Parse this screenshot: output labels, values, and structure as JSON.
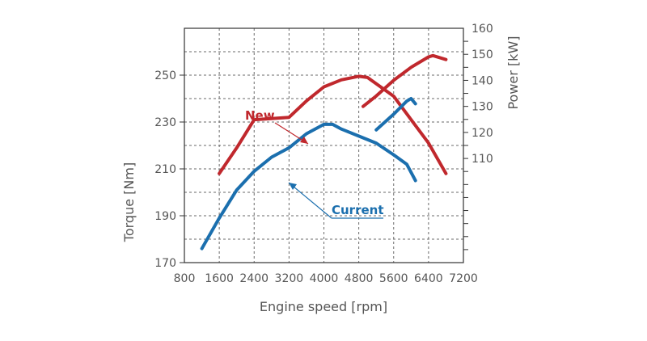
{
  "chart_data": {
    "type": "line",
    "xlabel": "Engine speed [rpm]",
    "ylabel": "Torque [Nm]",
    "y2label": "Power [kW]",
    "xlim": [
      800,
      7200
    ],
    "ylim": [
      170,
      270
    ],
    "y2lim": [
      70,
      160
    ],
    "grid": true,
    "x_ticks": [
      800,
      1600,
      2400,
      3200,
      4000,
      4800,
      5600,
      6400,
      7200
    ],
    "y_ticks": [
      170,
      190,
      210,
      230,
      250
    ],
    "y2_ticks": [
      110,
      120,
      130,
      140,
      150,
      160
    ],
    "annotations": [
      {
        "text": "New",
        "color": "#c0282d"
      },
      {
        "text": "Current",
        "color": "#1b6fae"
      }
    ],
    "series": [
      {
        "axis": "left",
        "color": "#c0282d",
        "x": [
          1600,
          2000,
          2400,
          2800,
          3200,
          3600,
          4000,
          4400,
          4800,
          5000,
          5600,
          6000,
          6400,
          6800
        ],
        "y": [
          208,
          219,
          231,
          231.5,
          232,
          239,
          245,
          248,
          249.5,
          249,
          241,
          231,
          221,
          208
        ]
      },
      {
        "axis": "left",
        "color": "#1b6fae",
        "x": [
          1200,
          1600,
          2000,
          2400,
          2800,
          3200,
          3600,
          4000,
          4200,
          4400,
          4800,
          5200,
          5600,
          5900,
          6100
        ],
        "y": [
          176,
          189,
          201,
          209,
          215,
          219,
          225,
          229,
          229,
          227,
          224,
          221,
          216,
          212,
          205
        ]
      },
      {
        "axis": "right",
        "color": "#c0282d",
        "x": [
          4900,
          5200,
          5600,
          6000,
          6400,
          6500,
          6800
        ],
        "y": [
          130,
          134,
          140,
          145,
          149,
          149.5,
          148
        ]
      },
      {
        "axis": "right",
        "color": "#1b6fae",
        "x": [
          5200,
          5600,
          5900,
          6000,
          6100
        ],
        "y": [
          121,
          127,
          132,
          133,
          131
        ]
      }
    ]
  }
}
